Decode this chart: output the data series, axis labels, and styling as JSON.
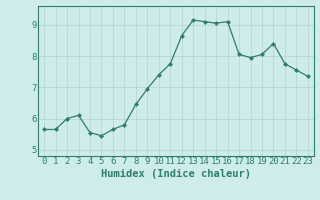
{
  "x": [
    0,
    1,
    2,
    3,
    4,
    5,
    6,
    7,
    8,
    9,
    10,
    11,
    12,
    13,
    14,
    15,
    16,
    17,
    18,
    19,
    20,
    21,
    22,
    23
  ],
  "y": [
    5.65,
    5.65,
    6.0,
    6.1,
    5.55,
    5.45,
    5.65,
    5.8,
    6.45,
    6.95,
    7.4,
    7.75,
    8.65,
    9.15,
    9.1,
    9.05,
    9.1,
    8.05,
    7.95,
    8.05,
    8.4,
    7.75,
    7.55,
    7.35
  ],
  "line_color": "#2e7d6e",
  "marker": "D",
  "marker_size": 2.0,
  "bg_color": "#ceecea",
  "grid_color": "#b8d8d5",
  "tick_color": "#2e7d6e",
  "spine_color": "#2e7d6e",
  "xlabel": "Humidex (Indice chaleur)",
  "ylim": [
    4.8,
    9.6
  ],
  "yticks": [
    5,
    6,
    7,
    8,
    9
  ],
  "xticks": [
    0,
    1,
    2,
    3,
    4,
    5,
    6,
    7,
    8,
    9,
    10,
    11,
    12,
    13,
    14,
    15,
    16,
    17,
    18,
    19,
    20,
    21,
    22,
    23
  ],
  "tick_fontsize": 6.5,
  "xlabel_fontsize": 7.5
}
